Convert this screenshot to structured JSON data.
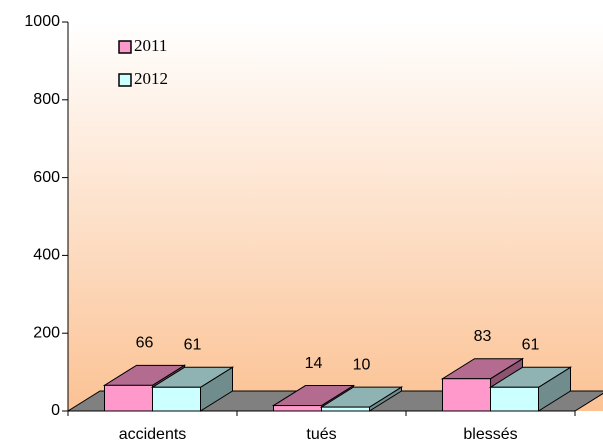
{
  "chart_data": {
    "type": "bar3d",
    "categories": [
      "accidents",
      "tués",
      "blessés"
    ],
    "series": [
      {
        "name": "2011",
        "color": "#ff99cc",
        "values": [
          66,
          14,
          83
        ]
      },
      {
        "name": "2012",
        "color": "#ccffff",
        "values": [
          61,
          10,
          61
        ]
      }
    ],
    "ylim": [
      0,
      1000
    ],
    "yticks": [
      0,
      200,
      400,
      600,
      800,
      1000
    ]
  }
}
